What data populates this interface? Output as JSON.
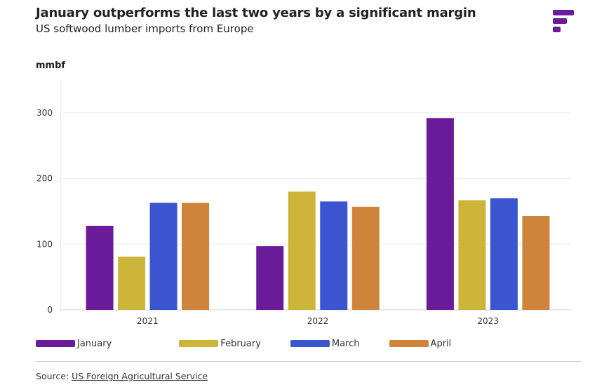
{
  "header": {
    "title": "January outperforms the last two years by a significant margin",
    "subtitle": "US softwood lumber imports from Europe"
  },
  "brand": {
    "color": "#6a1b9a"
  },
  "chart_data": {
    "type": "bar",
    "categories": [
      "2021",
      "2022",
      "2023"
    ],
    "series": [
      {
        "name": "January",
        "color": "#6a1b9a",
        "values": [
          128,
          97,
          292
        ]
      },
      {
        "name": "February",
        "color": "#cdb53a",
        "values": [
          81,
          180,
          167
        ]
      },
      {
        "name": "March",
        "color": "#3b55d1",
        "values": [
          163,
          165,
          170
        ]
      },
      {
        "name": "April",
        "color": "#cf843c",
        "values": [
          163,
          157,
          143
        ]
      }
    ],
    "ylabel": "mmbf",
    "xlabel": "",
    "ylim": [
      0,
      350
    ],
    "yticks": [
      0,
      100,
      200,
      300
    ],
    "grid": true,
    "legend_position": "bottom-left"
  },
  "footer": {
    "source_prefix": "Source: ",
    "source_link": "US Foreign Agricultural Service"
  }
}
